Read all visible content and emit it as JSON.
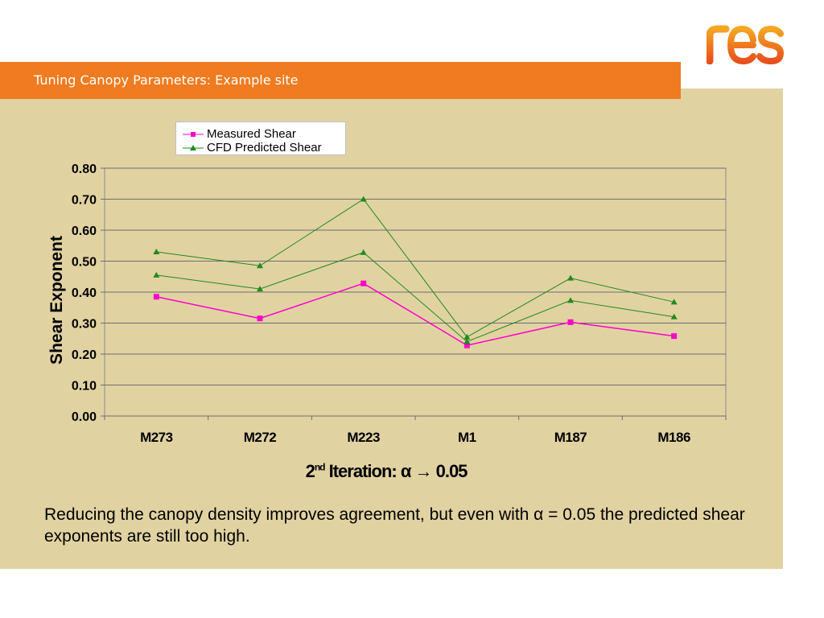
{
  "slide": {
    "title": "Tuning Canopy Parameters: Example site",
    "logo_text": "res",
    "caption": "Reducing the canopy density improves agreement, but even with α = 0.05 the predicted shear exponents are still too high.",
    "chart_subtitle_prefix": "2",
    "chart_subtitle_sup": "nd",
    "chart_subtitle_main": " Iteration: α → 0.",
    "chart_subtitle_digits": "05"
  },
  "colors": {
    "accent": "#f07b20",
    "content_bg": "#e1d2a2",
    "measured": "#ff00cc",
    "cfd": "#1f8a1f"
  },
  "chart_data": {
    "type": "line",
    "ylabel": "Shear Exponent",
    "xlabel": "",
    "ylim": [
      0,
      0.8
    ],
    "yticks": [
      "0.00",
      "0.10",
      "0.20",
      "0.30",
      "0.40",
      "0.50",
      "0.60",
      "0.70",
      "0.80"
    ],
    "categories": [
      "M273",
      "M272",
      "M223",
      "M1",
      "M187",
      "M186"
    ],
    "grid": true,
    "legend_position": "top",
    "series": [
      {
        "name": "Measured Shear",
        "marker": "square",
        "values": [
          0.385,
          0.315,
          0.428,
          0.228,
          0.303,
          0.258
        ]
      },
      {
        "name": "CFD Predicted Shear",
        "marker": "triangle",
        "values": [
          0.53,
          0.485,
          0.7,
          0.255,
          0.445,
          0.368
        ]
      },
      {
        "name": "",
        "marker": "triangle",
        "values": [
          0.455,
          0.41,
          0.528,
          0.24,
          0.373,
          0.32
        ]
      }
    ]
  }
}
